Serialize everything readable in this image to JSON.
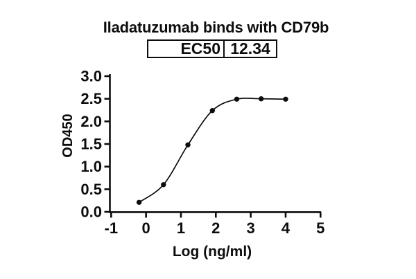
{
  "window": {
    "background": "#ffffff",
    "ink_color": "#0d0d0d"
  },
  "header": {
    "title": "Iladatuzumab binds with CD79b"
  },
  "ec50_table": {
    "label": "EC50",
    "value": "12.34"
  },
  "chart_data": {
    "type": "line",
    "title": "Iladatuzumab binds with CD79b",
    "xlabel": "Log (ng/ml)",
    "ylabel": "OD450",
    "xlim": [
      -1,
      5
    ],
    "ylim": [
      0,
      3
    ],
    "x_ticks": [
      -1,
      0,
      1,
      2,
      3,
      4,
      5
    ],
    "x_tick_labels": [
      "-1",
      "0",
      "1",
      "2",
      "3",
      "4",
      "5"
    ],
    "y_ticks": [
      0,
      0.5,
      1,
      1.5,
      2,
      2.5,
      3
    ],
    "y_tick_labels": [
      "0.0",
      "0.5",
      "1.0",
      "1.5",
      "2.0",
      "2.5",
      "3.0"
    ],
    "grid": false,
    "legend": "none",
    "curve_style": "smooth-sigmoid",
    "series": [
      {
        "name": "Iladatuzumab",
        "marker": "filled-circle",
        "color": "#0d0d0d",
        "x": [
          -0.2,
          0.5,
          1.2,
          1.9,
          2.6,
          3.3,
          4.0
        ],
        "y": [
          0.21,
          0.6,
          1.48,
          2.24,
          2.49,
          2.5,
          2.49
        ]
      }
    ],
    "annotations": {
      "ec50": 12.34
    }
  }
}
